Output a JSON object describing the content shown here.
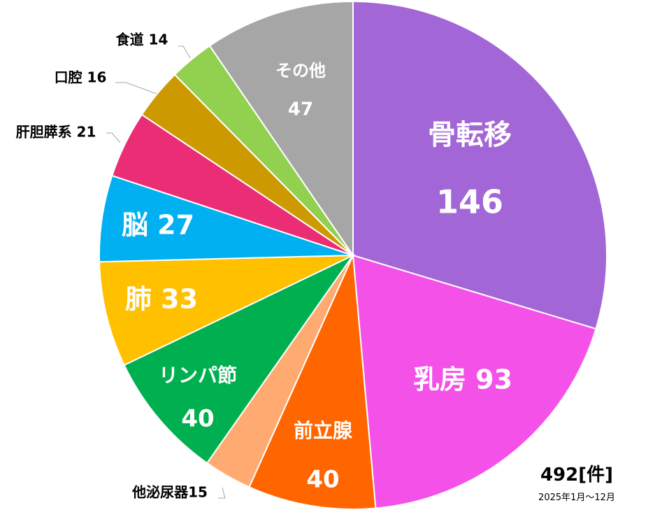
{
  "chart_data": {
    "type": "pie",
    "categories": [
      "骨転移",
      "乳房",
      "前立腺",
      "他泌尿器",
      "リンパ節",
      "肺",
      "脳",
      "肝胆膵系",
      "口腔",
      "食道",
      "その他"
    ],
    "values": [
      146,
      93,
      40,
      15,
      40,
      33,
      27,
      21,
      16,
      14,
      47
    ],
    "labels": [
      "骨転移",
      "乳房 93",
      "前立腺",
      "他泌尿器15",
      "リンパ節",
      "肺 33",
      "脳 27",
      "肝胆膵系 21",
      "口腔 16",
      "食道 14",
      "その他"
    ],
    "value_labels": [
      "146",
      "",
      "40",
      "",
      "40",
      "",
      "",
      "",
      "",
      "",
      "47"
    ],
    "colors": [
      "#a366d6",
      "#f451e8",
      "#ff6600",
      "#ffaa70",
      "#00b050",
      "#ffc000",
      "#00b0f0",
      "#ea2d74",
      "#cc9900",
      "#92d050",
      "#a6a6a6"
    ],
    "total_label": "492[件]",
    "period_label": "2025年1月～12月"
  }
}
